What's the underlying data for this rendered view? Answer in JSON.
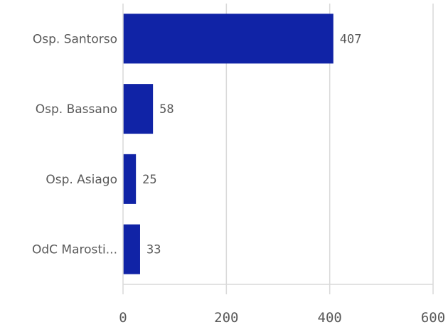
{
  "chart_data": {
    "type": "bar",
    "orientation": "horizontal",
    "categories": [
      "Osp. Santorso",
      "Osp. Bassano",
      "Osp. Asiago",
      "OdC Marosti..."
    ],
    "values": [
      407,
      58,
      25,
      33
    ],
    "data_labels": [
      "407",
      "58",
      "25",
      "33"
    ],
    "x_ticks": [
      "0",
      "200",
      "400",
      "600"
    ],
    "xlim": [
      0,
      600
    ],
    "grid": true,
    "legend": "none",
    "title": "",
    "xlabel": "",
    "ylabel": "",
    "bar_color": "#1023a6",
    "grid_color": "#d9d9d9",
    "text_color": "#595959"
  }
}
